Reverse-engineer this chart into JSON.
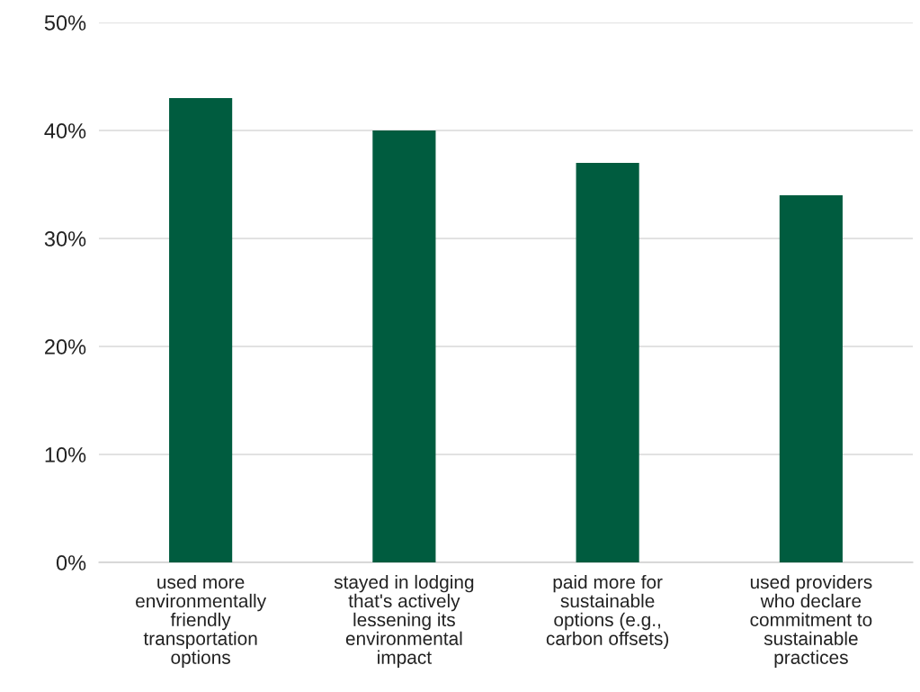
{
  "chart_data": {
    "type": "bar",
    "categories": [
      "used more\nenvironmentally\nfriendly\ntransportation\noptions",
      "stayed in lodging\nthat's actively\nlessening its\nenvironmental\nimpact",
      "paid more for\nsustainable\noptions (e.g.,\ncarbon offsets)",
      "used providers\nwho declare\ncommitment to\nsustainable\npractices"
    ],
    "values": [
      43,
      40,
      37,
      34
    ],
    "color": "#005c3f",
    "ylim": [
      0,
      50
    ],
    "yticks": [
      {
        "value": 0,
        "label": "0%"
      },
      {
        "value": 10,
        "label": "10%"
      },
      {
        "value": 20,
        "label": "20%"
      },
      {
        "value": 30,
        "label": "30%"
      },
      {
        "value": 40,
        "label": "40%"
      },
      {
        "value": 50,
        "label": "50%"
      }
    ],
    "grid": "y",
    "legend": false
  }
}
